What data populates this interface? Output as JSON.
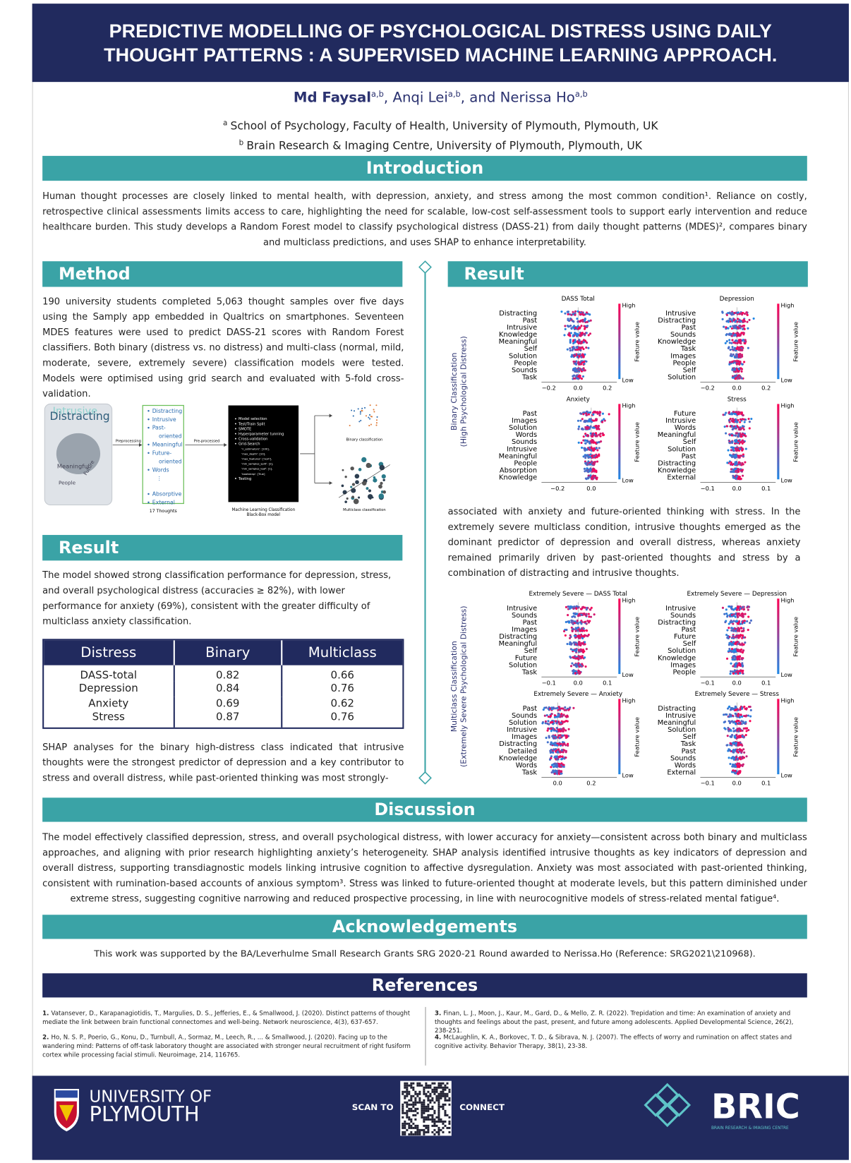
{
  "header": {
    "title": "PREDICTIVE MODELLING OF PSYCHOLOGICAL DISTRESS USING DAILY THOUGHT PATTERNS : A SUPERVISED MACHINE LEARNING APPROACH.",
    "authors": [
      {
        "name": "Md Faysal",
        "sup": "a,b"
      },
      {
        "name": "Anqi Lei",
        "sup": "a,b"
      },
      {
        "name": "Nerissa Ho",
        "sup": "a,b"
      }
    ],
    "separators": [
      ", ",
      ", and "
    ],
    "affiliations": [
      {
        "sup": "a",
        "text": "School of Psychology, Faculty of Health, University of Plymouth, Plymouth, UK"
      },
      {
        "sup": "b",
        "text": "Brain Research & Imaging Centre, University of Plymouth, Plymouth, UK"
      }
    ]
  },
  "introduction": {
    "heading": "Introduction",
    "text": "Human thought processes are closely linked to mental health, with depression, anxiety, and stress among the most common condition¹. Reliance on costly, retrospective clinical assessments limits access to care, highlighting the need for scalable, low-cost self-assessment tools to support early intervention and reduce healthcare burden. This study develops a Random Forest model to classify psychological distress (DASS-21) from daily thought patterns (MDES)², compares binary and multiclass predictions, and uses SHAP to enhance interpretability."
  },
  "method": {
    "heading": "Method",
    "text": "190 university students completed 5,063 thought samples over five days using the Samply app embedded in Qualtrics on smartphones. Seventeen MDES features were used to predict DASS-21 scores with Random Forest classifiers. Both binary (distress vs. no distress) and multi-class (normal, mild, moderate, severe, extremely severe) classification models were tested. Models were optimised using grid search and evaluated with 5-fold cross-validation.",
    "diagram": {
      "word_cloud": [
        "Intrusive",
        "Distracting",
        "Meaningful",
        "People",
        "Future"
      ],
      "arrow1": "Preprocessing",
      "thoughts": [
        "Distracting",
        "Intrusive",
        "Past-",
        "oriented",
        "Meaningful",
        "Future-",
        "oriented",
        "Words",
        "⋮",
        "Absorptive",
        "External"
      ],
      "thoughts_label": "17 Thoughts",
      "arrow2": "Pre-processed",
      "model_steps": [
        "Model selection",
        "Test/Train Split",
        "SMOTE",
        "Hyperparameter tunning",
        "Cross-validation",
        "Grid-Search",
        "'n_estimators': [100],",
        "'max_depth': [10],",
        "'max_features': ['sqrt'],",
        "'min_samples_split': [2],",
        "'min_samples_leaf': [1],",
        "'bootstrap': [True]",
        "Testing"
      ],
      "model_label": [
        "Machine Learning Classification",
        "Black-Box model"
      ],
      "binary_label": "Binary classification",
      "multiclass_label": "Multiclass classification"
    }
  },
  "result_left": {
    "heading": "Result",
    "text": "The model showed strong classification performance for depression, stress, and overall psychological distress (accuracies ≥ 82%), with lower performance for anxiety (69%), consistent with the greater difficulty of multiclass anxiety classification.",
    "table": {
      "header": [
        "Distress",
        "Binary",
        "Multiclass"
      ],
      "rows": [
        [
          "DASS-total",
          0.82,
          0.66
        ],
        [
          "Depression",
          0.84,
          0.76
        ],
        [
          "Anxiety",
          0.69,
          0.62
        ],
        [
          "Stress",
          0.87,
          0.76
        ]
      ]
    },
    "text2": "SHAP analyses for the binary high-distress class indicated that intrusive thoughts were the strongest predictor of depression and a key contributor to stress and overall distress, while past-oriented thinking was most strongly-"
  },
  "result_right": {
    "heading": "Result",
    "high": "High",
    "low": "Low",
    "feature_value": "Feature value",
    "binary": {
      "axis_label": [
        "Binary Classification",
        "(High Psychological Distress)"
      ],
      "plots": [
        {
          "title": "DASS Total",
          "features": [
            "Distracting",
            "Past",
            "Intrusive",
            "Knowledge",
            "Meaningful",
            "Self",
            "Solution",
            "People",
            "Sounds",
            "Task"
          ],
          "ticks": [
            "−0.2",
            "0.0",
            "0.2"
          ]
        },
        {
          "title": "Depression",
          "features": [
            "Intrusive",
            "Distracting",
            "Past",
            "Sounds",
            "Knowledge",
            "Task",
            "Images",
            "People",
            "Self",
            "Solution"
          ],
          "ticks": [
            "−0.2",
            "0.0",
            "0.2"
          ]
        },
        {
          "title": "Anxiety",
          "features": [
            "Past",
            "Images",
            "Solution",
            "Words",
            "Sounds",
            "Intrusive",
            "Meaningful",
            "People",
            "Absorption",
            "Knowledge"
          ],
          "ticks": [
            "−0.2",
            "0.0"
          ]
        },
        {
          "title": "Stress",
          "features": [
            "Future",
            "Intrusive",
            "Words",
            "Meaningful",
            "Self",
            "Solution",
            "Past",
            "Distracting",
            "Knowledge",
            "External"
          ],
          "ticks": [
            "−0.1",
            "0.0",
            "0.1"
          ]
        }
      ]
    },
    "text": "associated with anxiety and future-oriented thinking with stress. In the extremely severe multiclass condition, intrusive thoughts emerged as the dominant predictor of depression and overall distress, whereas anxiety remained primarily driven by past-oriented thoughts and stress by a combination of distracting and intrusive thoughts.",
    "multiclass": {
      "axis_label": [
        "Multiclass Classification",
        "(Extremely Severe Psychological Distress)"
      ],
      "plots": [
        {
          "title": "Extremely Severe — DASS Total",
          "features": [
            "Intrusive",
            "Sounds",
            "Past",
            "Images",
            "Distracting",
            "Meaningful",
            "Self",
            "Future",
            "Solution",
            "Task"
          ],
          "ticks": [
            "−0.1",
            "0.0",
            "0.1"
          ]
        },
        {
          "title": "Extremely Severe — Depression",
          "features": [
            "Intrusive",
            "Sounds",
            "Distracting",
            "Past",
            "Future",
            "Self",
            "Solution",
            "Knowledge",
            "Images",
            "People"
          ],
          "ticks": [
            "−0.1",
            "0.0",
            "0.1"
          ]
        },
        {
          "title": "Extremely Severe — Anxiety",
          "features": [
            "Past",
            "Sounds",
            "Solution",
            "Intrusive",
            "Images",
            "Distracting",
            "Detailed",
            "Knowledge",
            "Words",
            "Task"
          ],
          "ticks": [
            "0.0",
            "0.2"
          ]
        },
        {
          "title": "Extremely Severe — Stress",
          "features": [
            "Distracting",
            "Intrusive",
            "Meaningful",
            "Solution",
            "Self",
            "Task",
            "Past",
            "Sounds",
            "Words",
            "External"
          ],
          "ticks": [
            "−0.1",
            "0.0",
            "0.1"
          ]
        }
      ]
    }
  },
  "discussion": {
    "heading": "Discussion",
    "text": "The model effectively classified depression, stress, and overall psychological distress, with lower accuracy for anxiety—consistent across both binary and multiclass approaches, and aligning with prior research highlighting anxiety’s heterogeneity. SHAP analysis identified intrusive thoughts as key indicators of depression and overall distress, supporting transdiagnostic models linking intrusive cognition to affective dysregulation. Anxiety was most associated with past-oriented thinking, consistent with rumination-based accounts of anxious symptom³. Stress was linked to future-oriented thought at moderate levels, but this pattern diminished under extreme stress, suggesting cognitive narrowing and reduced prospective processing, in line with neurocognitive models of stress-related mental fatigue⁴."
  },
  "acknowledgements": {
    "heading": "Acknowledgements",
    "text": "This work was supported by the BA/Leverhulme Small Research Grants SRG 2020-21 Round awarded to Nerissa.Ho (Reference: SRG2021\\210968)."
  },
  "references": {
    "heading": "References",
    "items": [
      {
        "num": "1.",
        "text": "Vatansever, D., Karapanagiotidis, T., Margulies, D. S., Jefferies, E., & Smallwood, J. (2020). Distinct patterns of thought mediate the link between brain functional connectomes and well-being. Network neuroscience, 4(3), 637-657."
      },
      {
        "num": "2.",
        "text": "Ho, N. S. P., Poerio, G., Konu, D., Turnbull, A., Sormaz, M., Leech, R., ... & Smallwood, J. (2020). Facing up to the wandering mind: Patterns of off-task laboratory thought are associated with stronger neural recruitment of right fusiform cortex while processing facial stimuli. Neuroimage, 214, 116765."
      },
      {
        "num": "3.",
        "text": "Finan, L. J., Moon, J., Kaur, M., Gard, D., & Mello, Z. R. (2022). Trepidation and time: An examination of anxiety and thoughts and feelings about the past, present, and future among adolescents. Applied Developmental Science, 26(2), 238-251."
      },
      {
        "num": "4.",
        "text": "McLaughlin, K. A., Borkovec, T. D., & Sibrava, N. J. (2007). The effects of worry and rumination on affect states and cognitive activity. Behavior Therapy, 38(1), 23-38."
      }
    ]
  },
  "footer": {
    "university": [
      "UNIVERSITY OF",
      "PLYMOUTH"
    ],
    "scan": "SCAN TO",
    "connect": "CONNECT",
    "bric": "BRIC",
    "bric_sub": "BRAIN RESEARCH & IMAGING CENTRE"
  }
}
